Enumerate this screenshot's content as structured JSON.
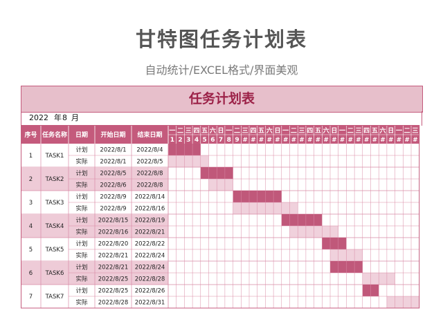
{
  "page": {
    "title": "甘特图任务计划表",
    "subtitle": "自动统计/EXCEL格式/界面美观"
  },
  "sheet": {
    "title": "任务计划表",
    "year": "2022",
    "year_unit": "年",
    "month": "8",
    "month_unit": "月",
    "headers": {
      "no": "序号",
      "task": "任务名称",
      "type": "日期",
      "start": "开始日期",
      "end": "结束日期"
    },
    "weekday_labels": [
      "一",
      "二",
      "三",
      "四",
      "五",
      "六",
      "日",
      "一",
      "二",
      "三",
      "四",
      "五",
      "六",
      "日",
      "一",
      "二",
      "三",
      "四",
      "五",
      "六",
      "日",
      "一",
      "二",
      "三",
      "四",
      "五",
      "六",
      "日",
      "一",
      "二",
      "三"
    ],
    "day_labels": [
      "1",
      "2",
      "3",
      "4",
      "5",
      "6",
      "7",
      "8",
      "9",
      "#",
      "#",
      "#",
      "#",
      "#",
      "#",
      "#",
      "#",
      "#",
      "#",
      "#",
      "#",
      "#",
      "#",
      "#",
      "#",
      "#",
      "#",
      "#",
      "#",
      "#",
      "#"
    ],
    "plan_label": "计划",
    "actual_label": "实际",
    "tasks": [
      {
        "no": "1",
        "name": "TASK1",
        "plan_start": "2022/8/1",
        "plan_end": "2022/8/4",
        "actual_start": "2022/8/1",
        "actual_end": "2022/8/5"
      },
      {
        "no": "2",
        "name": "TASK2",
        "plan_start": "2022/8/5",
        "plan_end": "2022/8/8",
        "actual_start": "2022/8/6",
        "actual_end": "2022/8/8"
      },
      {
        "no": "3",
        "name": "TASK3",
        "plan_start": "2022/8/9",
        "plan_end": "2022/8/14",
        "actual_start": "2022/8/9",
        "actual_end": "2022/8/16"
      },
      {
        "no": "4",
        "name": "TASK4",
        "plan_start": "2022/8/15",
        "plan_end": "2022/8/19",
        "actual_start": "2022/8/16",
        "actual_end": "2022/8/21"
      },
      {
        "no": "5",
        "name": "TASK5",
        "plan_start": "2022/8/20",
        "plan_end": "2022/8/22",
        "actual_start": "2022/8/21",
        "actual_end": "2022/8/24"
      },
      {
        "no": "6",
        "name": "TASK6",
        "plan_start": "2022/8/21",
        "plan_end": "2022/8/24",
        "actual_start": "2022/8/25",
        "actual_end": "2022/8/28"
      },
      {
        "no": "7",
        "name": "TASK7",
        "plan_start": "2022/8/25",
        "plan_end": "2022/8/26",
        "actual_start": "2022/8/28",
        "actual_end": "2022/8/31"
      }
    ]
  },
  "colors": {
    "accent": "#c45a7c",
    "header_bg": "#c45a7c",
    "plan_bar": "#c0587a",
    "actual_bar": "#f0d1dc",
    "shaded_row": "#eecbd7",
    "title_bg": "#e7bfcb",
    "grid_line": "#d98aa5"
  }
}
